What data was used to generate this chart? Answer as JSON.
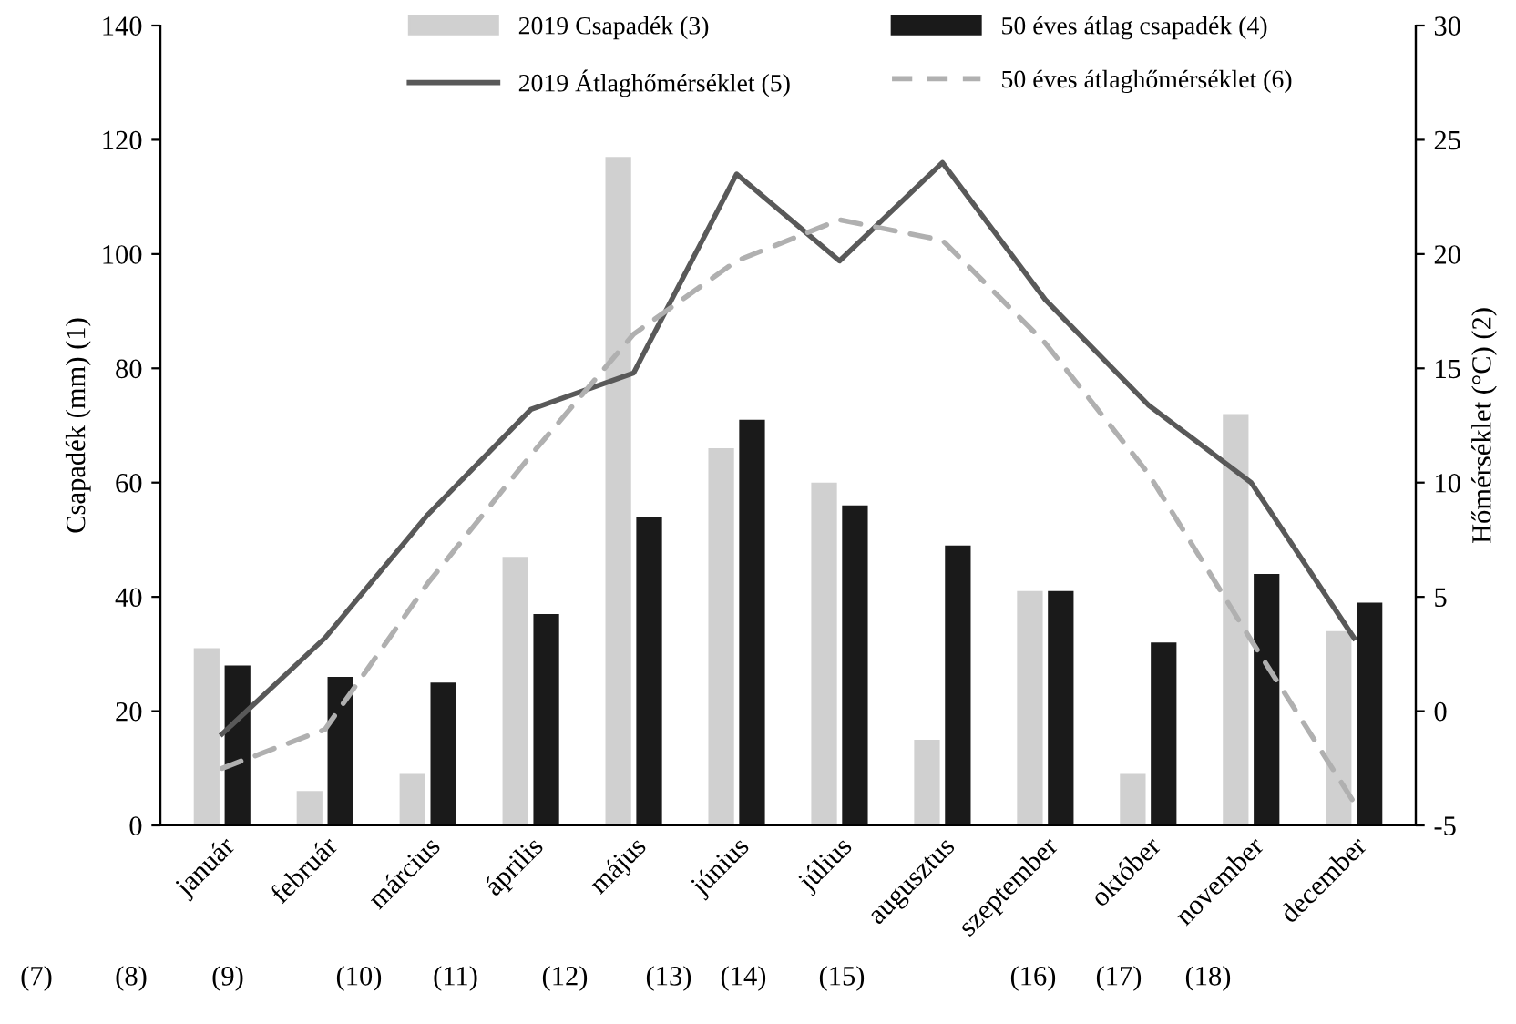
{
  "chart_data": {
    "type": "bar",
    "categories": [
      "január",
      "február",
      "március",
      "április",
      "május",
      "június",
      "július",
      "augusztus",
      "szeptember",
      "október",
      "november",
      "december"
    ],
    "series": [
      {
        "name": "2019 Csapadék (3)",
        "color": "#d0d0d0",
        "values": [
          31,
          6,
          9,
          47,
          117,
          66,
          60,
          15,
          41,
          9,
          72,
          34
        ]
      },
      {
        "name": "50 éves átlag csapadék (4)",
        "color": "#1a1a1a",
        "values": [
          28,
          26,
          25,
          37,
          54,
          71,
          56,
          49,
          41,
          32,
          44,
          39
        ]
      },
      {
        "name": "2019 Átlaghőmérséklet (5)",
        "type": "line",
        "axis": "y2",
        "color": "#595959",
        "line_style": "solid",
        "values": [
          -1.0,
          3.2,
          8.6,
          13.2,
          14.8,
          23.5,
          19.7,
          24.0,
          18.0,
          13.4,
          10.0,
          3.2
        ]
      },
      {
        "name": "50 éves átlaghőmérséklet (6)",
        "type": "line",
        "axis": "y2",
        "color": "#b0b0b0",
        "line_style": "dashed",
        "values": [
          -2.5,
          -0.8,
          5.6,
          11.2,
          16.5,
          19.7,
          21.5,
          20.6,
          16.1,
          10.4,
          3.1,
          -4.0
        ]
      }
    ],
    "ylabel": "Csapadék (mm) (1)",
    "y2label": "Hőmérséklet (°C) (2)",
    "ylim": [
      0,
      140
    ],
    "yticks": [
      0,
      20,
      40,
      60,
      80,
      100,
      120,
      140
    ],
    "y2lim": [
      -5,
      30
    ],
    "y2ticks": [
      -5,
      0,
      5,
      10,
      15,
      20,
      25,
      30
    ],
    "legend": "top",
    "grid": false,
    "annotations": [
      "(7)",
      "(8)",
      "(9)",
      "(10)",
      "(11)",
      "(12)",
      "(13)",
      "(14)",
      "(15)",
      "(16)",
      "(17)",
      "(18)"
    ]
  }
}
